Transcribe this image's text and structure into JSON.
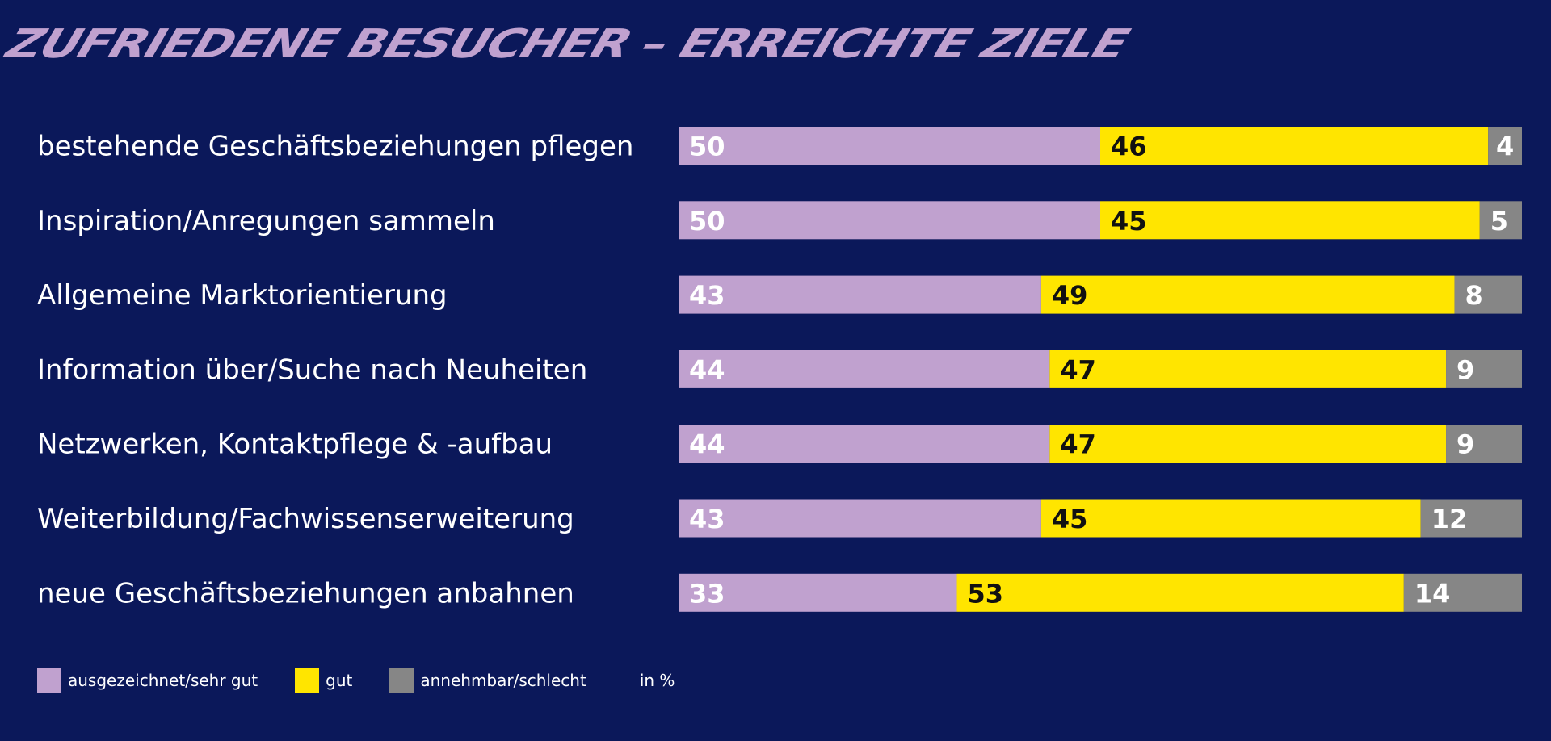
{
  "chart_data": {
    "type": "bar",
    "orientation": "horizontal",
    "stacked": true,
    "title": "ZUFRIEDENE BESUCHER – ERREICHTE ZIELE",
    "unit": "in %",
    "xlim": [
      0,
      100
    ],
    "grid": false,
    "legend_position": "bottom-left",
    "categories": [
      "bestehende Geschäftsbeziehungen pflegen",
      "Inspiration/Anregungen sammeln",
      "Allgemeine Marktorientierung",
      "Information über/Suche nach Neuheiten",
      "Netzwerken, Kontaktpflege & -aufbau",
      "Weiterbildung/Fachwissenserweiterung",
      "neue Geschäftsbeziehungen anbahnen"
    ],
    "series": [
      {
        "name": "ausgezeichnet/sehr gut",
        "color": "#c0a1cf",
        "label_color": "#ffffff",
        "values": [
          50,
          50,
          43,
          44,
          44,
          43,
          33
        ]
      },
      {
        "name": "gut",
        "color": "#ffe500",
        "label_color": "#111111",
        "values": [
          46,
          45,
          49,
          47,
          47,
          45,
          53
        ]
      },
      {
        "name": "annehmbar/schlecht",
        "color": "#868686",
        "label_color": "#ffffff",
        "values": [
          4,
          5,
          8,
          9,
          9,
          12,
          14
        ]
      }
    ]
  }
}
